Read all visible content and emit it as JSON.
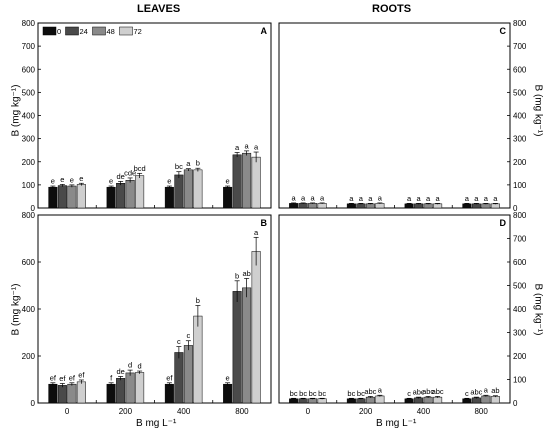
{
  "figure": {
    "col_titles": [
      "LEAVES",
      "ROOTS"
    ],
    "ylabel": "B (mg kg⁻¹)",
    "xlabel": "B mg L⁻¹"
  },
  "chart_data": [
    {
      "type": "bar",
      "panel": "A",
      "categories": [
        "0",
        "200",
        "400",
        "800"
      ],
      "ylim": [
        0,
        800
      ],
      "yticks": [
        "0",
        "100",
        "200",
        "300",
        "400",
        "500",
        "600",
        "700",
        "800"
      ],
      "legend": {
        "placement": "top-left",
        "entries": [
          "0",
          "24",
          "48",
          "72"
        ]
      },
      "series": [
        {
          "name": "0",
          "color": "#0d0d0d",
          "values": [
            90,
            90,
            90,
            90
          ],
          "errors": [
            5,
            5,
            5,
            5
          ],
          "letters": [
            "e",
            "e",
            "e",
            "e"
          ]
        },
        {
          "name": "24",
          "color": "#4a4a4a",
          "values": [
            97,
            107,
            143,
            230
          ],
          "errors": [
            5,
            8,
            14,
            10
          ],
          "letters": [
            "e",
            "de",
            "bc",
            "a"
          ]
        },
        {
          "name": "48",
          "color": "#8a8a8a",
          "values": [
            95,
            120,
            165,
            237
          ],
          "errors": [
            5,
            10,
            5,
            10
          ],
          "letters": [
            "e",
            "cde",
            "a",
            "a"
          ]
        },
        {
          "name": "72",
          "color": "#cfcfcf",
          "values": [
            102,
            140,
            165,
            220
          ],
          "errors": [
            5,
            10,
            7,
            22
          ],
          "letters": [
            "e",
            "bcd",
            "b",
            "a"
          ]
        }
      ]
    },
    {
      "type": "bar",
      "panel": "C",
      "categories": [
        "0",
        "200",
        "400",
        "800"
      ],
      "ylim": [
        0,
        800
      ],
      "yticks": [
        "0",
        "100",
        "200",
        "300",
        "400",
        "500",
        "600",
        "700",
        "800"
      ],
      "series": [
        {
          "name": "0",
          "color": "#0d0d0d",
          "values": [
            20,
            18,
            18,
            18
          ],
          "errors": [
            2,
            2,
            2,
            2
          ],
          "letters": [
            "a",
            "a",
            "a",
            "a"
          ]
        },
        {
          "name": "24",
          "color": "#4a4a4a",
          "values": [
            20,
            18,
            18,
            18
          ],
          "errors": [
            2,
            2,
            2,
            2
          ],
          "letters": [
            "a",
            "a",
            "a",
            "a"
          ]
        },
        {
          "name": "48",
          "color": "#8a8a8a",
          "values": [
            20,
            18,
            18,
            18
          ],
          "errors": [
            2,
            2,
            2,
            2
          ],
          "letters": [
            "a",
            "a",
            "a",
            "a"
          ]
        },
        {
          "name": "72",
          "color": "#cfcfcf",
          "values": [
            20,
            20,
            18,
            18
          ],
          "errors": [
            2,
            2,
            2,
            2
          ],
          "letters": [
            "a",
            "a",
            "a",
            "a"
          ]
        }
      ]
    },
    {
      "type": "bar",
      "panel": "B",
      "categories": [
        "0",
        "200",
        "400",
        "800"
      ],
      "ylim": [
        0,
        800
      ],
      "yticks": [
        "0",
        "200",
        "400",
        "600",
        "800"
      ],
      "series": [
        {
          "name": "0",
          "color": "#0d0d0d",
          "values": [
            80,
            80,
            80,
            80
          ],
          "errors": [
            6,
            6,
            6,
            6
          ],
          "letters": [
            "ef",
            "f",
            "ef",
            "e"
          ]
        },
        {
          "name": "24",
          "color": "#4a4a4a",
          "values": [
            75,
            105,
            215,
            475
          ],
          "errors": [
            8,
            8,
            25,
            45
          ],
          "letters": [
            "ef",
            "de",
            "c",
            "b"
          ]
        },
        {
          "name": "48",
          "color": "#8a8a8a",
          "values": [
            80,
            128,
            245,
            490
          ],
          "errors": [
            6,
            12,
            20,
            40
          ],
          "letters": [
            "ef",
            "d",
            "c",
            "ab"
          ]
        },
        {
          "name": "72",
          "color": "#cfcfcf",
          "values": [
            90,
            130,
            370,
            645
          ],
          "errors": [
            8,
            6,
            45,
            60
          ],
          "letters": [
            "ef",
            "d",
            "b",
            "a"
          ]
        }
      ]
    },
    {
      "type": "bar",
      "panel": "D",
      "categories": [
        "0",
        "200",
        "400",
        "800"
      ],
      "ylim": [
        0,
        800
      ],
      "yticks": [
        "0",
        "100",
        "200",
        "300",
        "400",
        "500",
        "600",
        "700",
        "800"
      ],
      "series": [
        {
          "name": "0",
          "color": "#0d0d0d",
          "values": [
            18,
            18,
            18,
            18
          ],
          "errors": [
            2,
            2,
            2,
            2
          ],
          "letters": [
            "bc",
            "bc",
            "c",
            "c"
          ]
        },
        {
          "name": "24",
          "color": "#4a4a4a",
          "values": [
            18,
            18,
            22,
            22
          ],
          "errors": [
            2,
            2,
            3,
            3
          ],
          "letters": [
            "bc",
            "bc",
            "abc",
            "abc"
          ]
        },
        {
          "name": "48",
          "color": "#8a8a8a",
          "values": [
            18,
            25,
            25,
            30
          ],
          "errors": [
            2,
            3,
            3,
            3
          ],
          "letters": [
            "bc",
            "abc",
            "abc",
            "a"
          ]
        },
        {
          "name": "72",
          "color": "#cfcfcf",
          "values": [
            18,
            30,
            25,
            28
          ],
          "errors": [
            2,
            3,
            3,
            3
          ],
          "letters": [
            "bc",
            "a",
            "abc",
            "ab"
          ]
        }
      ]
    }
  ]
}
